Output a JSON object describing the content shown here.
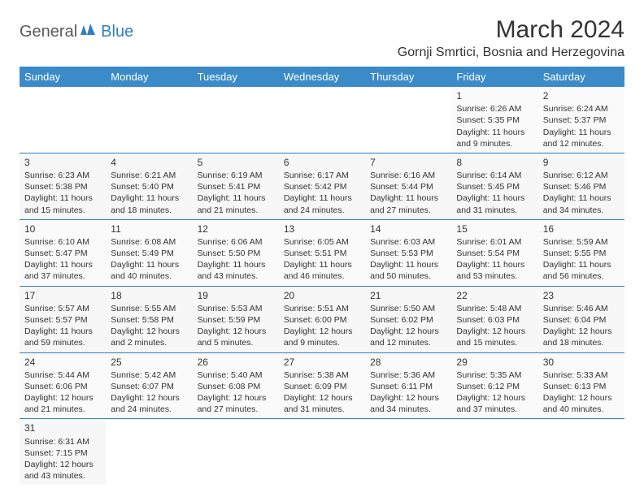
{
  "logo": {
    "part1": "General",
    "part2": "Blue"
  },
  "title": "March 2024",
  "location": "Gornji Smrtici, Bosnia and Herzegovina",
  "header_bg": "#3b8bc9",
  "header_fg": "#ffffff",
  "border_color": "#2f7fc2",
  "weekdays": [
    "Sunday",
    "Monday",
    "Tuesday",
    "Wednesday",
    "Thursday",
    "Friday",
    "Saturday"
  ],
  "weeks": [
    [
      null,
      null,
      null,
      null,
      null,
      {
        "n": "1",
        "sr": "6:26 AM",
        "ss": "5:35 PM",
        "dl": "11 hours and 9 minutes."
      },
      {
        "n": "2",
        "sr": "6:24 AM",
        "ss": "5:37 PM",
        "dl": "11 hours and 12 minutes."
      }
    ],
    [
      {
        "n": "3",
        "sr": "6:23 AM",
        "ss": "5:38 PM",
        "dl": "11 hours and 15 minutes."
      },
      {
        "n": "4",
        "sr": "6:21 AM",
        "ss": "5:40 PM",
        "dl": "11 hours and 18 minutes."
      },
      {
        "n": "5",
        "sr": "6:19 AM",
        "ss": "5:41 PM",
        "dl": "11 hours and 21 minutes."
      },
      {
        "n": "6",
        "sr": "6:17 AM",
        "ss": "5:42 PM",
        "dl": "11 hours and 24 minutes."
      },
      {
        "n": "7",
        "sr": "6:16 AM",
        "ss": "5:44 PM",
        "dl": "11 hours and 27 minutes."
      },
      {
        "n": "8",
        "sr": "6:14 AM",
        "ss": "5:45 PM",
        "dl": "11 hours and 31 minutes."
      },
      {
        "n": "9",
        "sr": "6:12 AM",
        "ss": "5:46 PM",
        "dl": "11 hours and 34 minutes."
      }
    ],
    [
      {
        "n": "10",
        "sr": "6:10 AM",
        "ss": "5:47 PM",
        "dl": "11 hours and 37 minutes."
      },
      {
        "n": "11",
        "sr": "6:08 AM",
        "ss": "5:49 PM",
        "dl": "11 hours and 40 minutes."
      },
      {
        "n": "12",
        "sr": "6:06 AM",
        "ss": "5:50 PM",
        "dl": "11 hours and 43 minutes."
      },
      {
        "n": "13",
        "sr": "6:05 AM",
        "ss": "5:51 PM",
        "dl": "11 hours and 46 minutes."
      },
      {
        "n": "14",
        "sr": "6:03 AM",
        "ss": "5:53 PM",
        "dl": "11 hours and 50 minutes."
      },
      {
        "n": "15",
        "sr": "6:01 AM",
        "ss": "5:54 PM",
        "dl": "11 hours and 53 minutes."
      },
      {
        "n": "16",
        "sr": "5:59 AM",
        "ss": "5:55 PM",
        "dl": "11 hours and 56 minutes."
      }
    ],
    [
      {
        "n": "17",
        "sr": "5:57 AM",
        "ss": "5:57 PM",
        "dl": "11 hours and 59 minutes."
      },
      {
        "n": "18",
        "sr": "5:55 AM",
        "ss": "5:58 PM",
        "dl": "12 hours and 2 minutes."
      },
      {
        "n": "19",
        "sr": "5:53 AM",
        "ss": "5:59 PM",
        "dl": "12 hours and 5 minutes."
      },
      {
        "n": "20",
        "sr": "5:51 AM",
        "ss": "6:00 PM",
        "dl": "12 hours and 9 minutes."
      },
      {
        "n": "21",
        "sr": "5:50 AM",
        "ss": "6:02 PM",
        "dl": "12 hours and 12 minutes."
      },
      {
        "n": "22",
        "sr": "5:48 AM",
        "ss": "6:03 PM",
        "dl": "12 hours and 15 minutes."
      },
      {
        "n": "23",
        "sr": "5:46 AM",
        "ss": "6:04 PM",
        "dl": "12 hours and 18 minutes."
      }
    ],
    [
      {
        "n": "24",
        "sr": "5:44 AM",
        "ss": "6:06 PM",
        "dl": "12 hours and 21 minutes."
      },
      {
        "n": "25",
        "sr": "5:42 AM",
        "ss": "6:07 PM",
        "dl": "12 hours and 24 minutes."
      },
      {
        "n": "26",
        "sr": "5:40 AM",
        "ss": "6:08 PM",
        "dl": "12 hours and 27 minutes."
      },
      {
        "n": "27",
        "sr": "5:38 AM",
        "ss": "6:09 PM",
        "dl": "12 hours and 31 minutes."
      },
      {
        "n": "28",
        "sr": "5:36 AM",
        "ss": "6:11 PM",
        "dl": "12 hours and 34 minutes."
      },
      {
        "n": "29",
        "sr": "5:35 AM",
        "ss": "6:12 PM",
        "dl": "12 hours and 37 minutes."
      },
      {
        "n": "30",
        "sr": "5:33 AM",
        "ss": "6:13 PM",
        "dl": "12 hours and 40 minutes."
      }
    ],
    [
      {
        "n": "31",
        "sr": "6:31 AM",
        "ss": "7:15 PM",
        "dl": "12 hours and 43 minutes."
      },
      null,
      null,
      null,
      null,
      null,
      null
    ]
  ],
  "labels": {
    "sunrise": "Sunrise:",
    "sunset": "Sunset:",
    "daylight": "Daylight:"
  }
}
